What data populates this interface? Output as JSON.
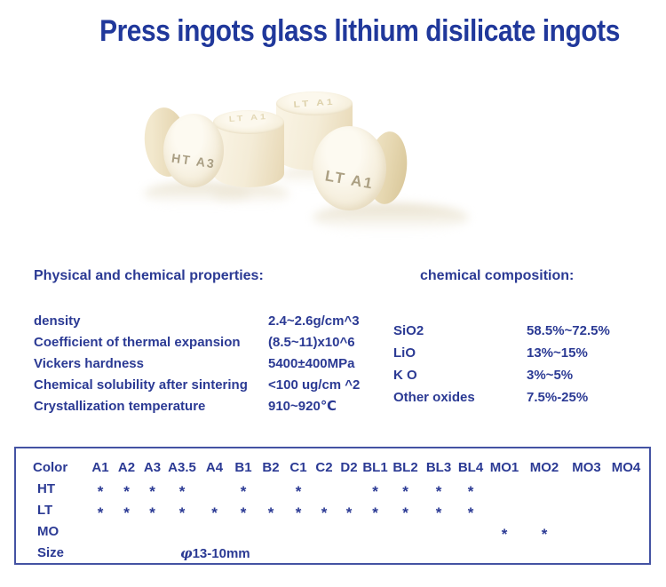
{
  "header": {
    "title": "Press ingots glass lithium disilicate ingots"
  },
  "hero": {
    "disc_left_label": "HT A3",
    "disc_right_label": "LT A1",
    "cyl_mid_top_label": "LT A1",
    "cyl_back_top_label": "LT A1"
  },
  "physical": {
    "heading": "Physical and chemical properties:",
    "rows": [
      {
        "label": "density",
        "value": "2.4~2.6g/cm^3"
      },
      {
        "label": "Coefficient of thermal expansion",
        "value": "(8.5~11)x10^6"
      },
      {
        "label": "Vickers hardness",
        "value": "5400±400MPa"
      },
      {
        "label": "Chemical solubility after sintering",
        "value": "<100 ug/cm ^2"
      },
      {
        "label": "Crystallization temperature",
        "value": "910~920℃"
      }
    ]
  },
  "composition": {
    "heading": "chemical composition:",
    "rows": [
      {
        "label": "SiO2",
        "value": "58.5%~72.5%"
      },
      {
        "label": "LiO",
        "value": "13%~15%"
      },
      {
        "label": "K O",
        "value": "3%~5%"
      },
      {
        "label": "Other oxides",
        "value": "7.5%-25%"
      }
    ]
  },
  "table": {
    "header": [
      "Color",
      "A1",
      "A2",
      "A3",
      "A3.5",
      "A4",
      "B1",
      "B2",
      "C1",
      "C2",
      "D2",
      "BL1",
      "BL2",
      "BL3",
      "BL4",
      "MO1",
      "MO2",
      "MO3",
      "MO4"
    ],
    "rows": [
      {
        "label": "HT",
        "cells": [
          "*",
          "*",
          "*",
          "*",
          "",
          "*",
          "",
          "*",
          "",
          "",
          "*",
          "*",
          "*",
          "*",
          "",
          "",
          "",
          ""
        ]
      },
      {
        "label": "LT",
        "cells": [
          "*",
          "*",
          "*",
          "*",
          "*",
          "*",
          "*",
          "*",
          "*",
          "*",
          "*",
          "*",
          "*",
          "*",
          "",
          "",
          "",
          ""
        ]
      },
      {
        "label": "MO",
        "cells": [
          "",
          "",
          "",
          "",
          "",
          "",
          "",
          "",
          "",
          "",
          "",
          "",
          "",
          "",
          "*",
          "*",
          "",
          ""
        ]
      },
      {
        "label": "Size",
        "size_value": "φ13-10mm"
      }
    ]
  },
  "colors": {
    "title_blue": "#20389b",
    "text_blue": "#2b3a94",
    "table_border_blue": "#4453a3",
    "ingot_cream": "#f4ecd7",
    "ingot_shade": "#e4d5b2",
    "engraving_gray": "#a99e83"
  }
}
